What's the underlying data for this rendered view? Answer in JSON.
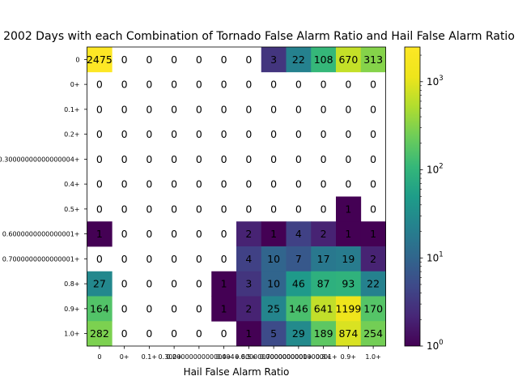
{
  "chart_data": {
    "type": "heatmap",
    "title": "2002 Days with each Combination of Tornado False Alarm Ratio and Hail False Alarm Ratio",
    "xlabel": "Hail False Alarm Ratio",
    "ylabel": "",
    "x_tick_labels": [
      "0",
      "0+",
      "0.1+",
      "0.2+",
      "0.30000000000000004+",
      "0.4+",
      "0.5+",
      "0.6000000000000001+",
      "0.7000000000000001+",
      "0.8+",
      "0.9+",
      "1.0+"
    ],
    "y_tick_labels": [
      "0",
      "0+",
      "0.1+",
      "0.2+",
      "0.30000000000000004+",
      "0.4+",
      "0.5+",
      "0.6000000000000001+",
      "0.7000000000000001+",
      "0.8+",
      "0.9+",
      "1.0+"
    ],
    "values": [
      [
        2475,
        0,
        0,
        0,
        0,
        0,
        0,
        3,
        22,
        108,
        670,
        313
      ],
      [
        0,
        0,
        0,
        0,
        0,
        0,
        0,
        0,
        0,
        0,
        0,
        0
      ],
      [
        0,
        0,
        0,
        0,
        0,
        0,
        0,
        0,
        0,
        0,
        0,
        0
      ],
      [
        0,
        0,
        0,
        0,
        0,
        0,
        0,
        0,
        0,
        0,
        0,
        0
      ],
      [
        0,
        0,
        0,
        0,
        0,
        0,
        0,
        0,
        0,
        0,
        0,
        0
      ],
      [
        0,
        0,
        0,
        0,
        0,
        0,
        0,
        0,
        0,
        0,
        0,
        0
      ],
      [
        0,
        0,
        0,
        0,
        0,
        0,
        0,
        0,
        0,
        0,
        1,
        0
      ],
      [
        1,
        0,
        0,
        0,
        0,
        0,
        2,
        1,
        4,
        2,
        1,
        1
      ],
      [
        0,
        0,
        0,
        0,
        0,
        0,
        4,
        10,
        7,
        17,
        19,
        2
      ],
      [
        27,
        0,
        0,
        0,
        0,
        1,
        3,
        10,
        46,
        87,
        93,
        22
      ],
      [
        164,
        0,
        0,
        0,
        0,
        1,
        2,
        25,
        146,
        641,
        1199,
        170
      ],
      [
        282,
        0,
        0,
        0,
        0,
        0,
        1,
        5,
        29,
        189,
        874,
        254
      ]
    ],
    "colorbar": {
      "scale": "log",
      "colormap": "viridis",
      "range": [
        1,
        2475
      ],
      "tick_labels": [
        "10^0",
        "10^1",
        "10^2",
        "10^3"
      ],
      "tick_values": [
        1,
        10,
        100,
        1000
      ]
    }
  }
}
